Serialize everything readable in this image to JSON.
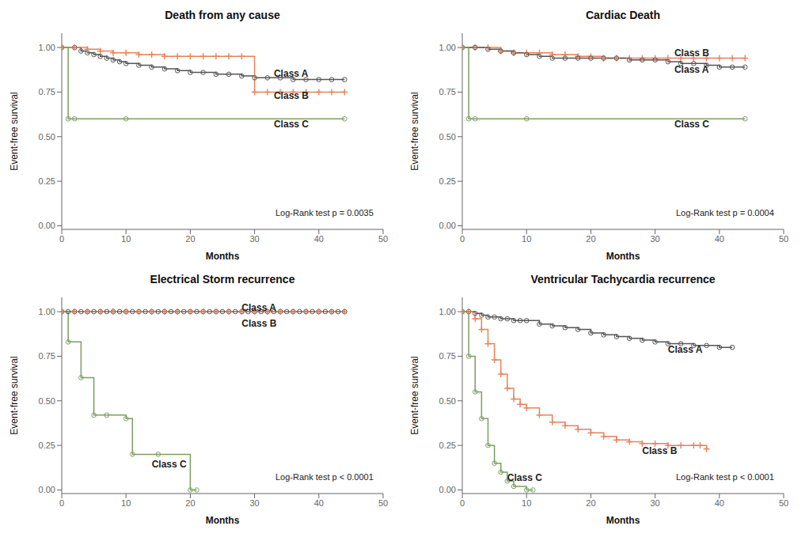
{
  "chart_data": [
    {
      "type": "step",
      "title": "Death from any cause",
      "x_label": "Months",
      "y_label": "Event-free survival",
      "xlim": [
        0,
        50
      ],
      "ylim": [
        -0.02,
        1.08
      ],
      "xticks": [
        0,
        10,
        20,
        30,
        40,
        50
      ],
      "yticks": [
        {
          "value": 0.0,
          "label": "0.00"
        },
        0.25,
        {
          "value": 0.5,
          "label": "0.50"
        },
        0.75,
        {
          "value": 1.0,
          "label": "1.00"
        }
      ],
      "series": [
        {
          "name": "Class A",
          "color": "#555555",
          "marker": "circle",
          "x": [
            0,
            2,
            3,
            4,
            5,
            6,
            7,
            8,
            9,
            10,
            12,
            14,
            16,
            18,
            20,
            22,
            24,
            26,
            28,
            30,
            32,
            34,
            36,
            38,
            40,
            42,
            44
          ],
          "values": [
            1.0,
            1.0,
            0.98,
            0.97,
            0.96,
            0.95,
            0.94,
            0.93,
            0.92,
            0.91,
            0.9,
            0.89,
            0.88,
            0.87,
            0.86,
            0.86,
            0.85,
            0.85,
            0.84,
            0.83,
            0.83,
            0.83,
            0.82,
            0.82,
            0.82,
            0.82,
            0.82
          ]
        },
        {
          "name": "Class B",
          "color": "#e8825a",
          "marker": "plus",
          "x": [
            0,
            2,
            4,
            6,
            8,
            10,
            12,
            14,
            16,
            18,
            20,
            22,
            24,
            26,
            28,
            30,
            32,
            34,
            36,
            38,
            40,
            42,
            44
          ],
          "values": [
            1.0,
            1.0,
            0.99,
            0.98,
            0.97,
            0.97,
            0.96,
            0.96,
            0.95,
            0.95,
            0.95,
            0.95,
            0.95,
            0.95,
            0.95,
            0.75,
            0.75,
            0.75,
            0.75,
            0.75,
            0.75,
            0.75,
            0.75
          ]
        },
        {
          "name": "Class C",
          "color": "#7a9f60",
          "marker": "circle",
          "x": [
            0,
            1,
            2,
            10,
            44
          ],
          "values": [
            1.0,
            0.6,
            0.6,
            0.6,
            0.6
          ]
        }
      ],
      "annotations": [
        {
          "text": "Class A",
          "x": 33,
          "y": 0.855
        },
        {
          "text": "Class B",
          "x": 33,
          "y": 0.73
        },
        {
          "text": "Class C",
          "x": 33,
          "y": 0.57
        },
        {
          "text": "Log-Rank test p = 0.0035"
        }
      ]
    },
    {
      "type": "step",
      "title": "Cardiac Death",
      "x_label": "Months",
      "y_label": "Event-free survival",
      "xlim": [
        0,
        50
      ],
      "ylim": [
        -0.02,
        1.08
      ],
      "xticks": [
        0,
        10,
        20,
        30,
        40,
        50
      ],
      "yticks": [
        {
          "value": 0.0,
          "label": "0.00"
        },
        0.25,
        {
          "value": 0.5,
          "label": "0.50"
        },
        0.75,
        {
          "value": 1.0,
          "label": "1.00"
        }
      ],
      "series": [
        {
          "name": "Class B",
          "color": "#e8825a",
          "marker": "plus",
          "x": [
            0,
            2,
            4,
            6,
            8,
            10,
            12,
            14,
            16,
            18,
            20,
            22,
            24,
            26,
            28,
            30,
            32,
            34,
            36,
            38,
            40,
            42,
            44
          ],
          "values": [
            1.0,
            1.0,
            1.0,
            0.98,
            0.97,
            0.97,
            0.97,
            0.96,
            0.96,
            0.95,
            0.95,
            0.94,
            0.94,
            0.94,
            0.94,
            0.94,
            0.94,
            0.94,
            0.94,
            0.94,
            0.94,
            0.94,
            0.94
          ]
        },
        {
          "name": "Class A",
          "color": "#555555",
          "marker": "circle",
          "x": [
            0,
            2,
            4,
            6,
            8,
            10,
            12,
            14,
            16,
            18,
            20,
            22,
            24,
            26,
            28,
            30,
            32,
            34,
            36,
            38,
            40,
            42,
            44
          ],
          "values": [
            1.0,
            1.0,
            0.99,
            0.98,
            0.97,
            0.96,
            0.95,
            0.94,
            0.94,
            0.94,
            0.94,
            0.94,
            0.94,
            0.93,
            0.93,
            0.93,
            0.92,
            0.91,
            0.91,
            0.9,
            0.89,
            0.89,
            0.89
          ]
        },
        {
          "name": "Class C",
          "color": "#7a9f60",
          "marker": "circle",
          "x": [
            0,
            1,
            2,
            10,
            44
          ],
          "values": [
            1.0,
            0.6,
            0.6,
            0.6,
            0.6
          ]
        }
      ],
      "annotations": [
        {
          "text": "Class B",
          "x": 33,
          "y": 0.97
        },
        {
          "text": "Class A",
          "x": 33,
          "y": 0.875
        },
        {
          "text": "Class C",
          "x": 33,
          "y": 0.57
        },
        {
          "text": "Log-Rank test p = 0.0004"
        }
      ]
    },
    {
      "type": "step",
      "title": "Electrical Storm recurrence",
      "x_label": "Months",
      "y_label": "Event-free survival",
      "xlim": [
        0,
        50
      ],
      "ylim": [
        -0.02,
        1.08
      ],
      "xticks": [
        0,
        10,
        20,
        30,
        40,
        50
      ],
      "yticks": [
        {
          "value": 0.0,
          "label": "0.00"
        },
        0.25,
        {
          "value": 0.5,
          "label": "0.50"
        },
        0.75,
        {
          "value": 1.0,
          "label": "1.00"
        }
      ],
      "series": [
        {
          "name": "Class A",
          "color": "#555555",
          "marker": "circle",
          "x": [
            0,
            1,
            2,
            3,
            4,
            5,
            6,
            7,
            8,
            9,
            10,
            11,
            12,
            13,
            14,
            15,
            16,
            17,
            18,
            19,
            20,
            21,
            22,
            23,
            24,
            25,
            26,
            27,
            28,
            29,
            30,
            31,
            32,
            33,
            34,
            35,
            36,
            37,
            38,
            39,
            40,
            41,
            42,
            43,
            44
          ],
          "values": [
            1.0,
            1.0,
            1.0,
            1.0,
            1.0,
            1.0,
            1.0,
            1.0,
            1.0,
            1.0,
            1.0,
            1.0,
            1.0,
            1.0,
            1.0,
            1.0,
            1.0,
            1.0,
            1.0,
            1.0,
            1.0,
            1.0,
            1.0,
            1.0,
            1.0,
            1.0,
            1.0,
            1.0,
            1.0,
            1.0,
            1.0,
            1.0,
            1.0,
            1.0,
            1.0,
            1.0,
            1.0,
            1.0,
            1.0,
            1.0,
            1.0,
            1.0,
            1.0,
            1.0,
            1.0
          ]
        },
        {
          "name": "Class B",
          "color": "#e8825a",
          "marker": "plus",
          "x": [
            0,
            2,
            4,
            6,
            8,
            10,
            12,
            14,
            16,
            18,
            20,
            22,
            24,
            26,
            28,
            30,
            32,
            34,
            36,
            38,
            40,
            42,
            44
          ],
          "values": [
            1.0,
            1.0,
            1.0,
            1.0,
            1.0,
            1.0,
            1.0,
            1.0,
            1.0,
            1.0,
            1.0,
            1.0,
            1.0,
            1.0,
            1.0,
            1.0,
            1.0,
            1.0,
            1.0,
            1.0,
            1.0,
            1.0,
            1.0
          ]
        },
        {
          "name": "Class C",
          "color": "#7a9f60",
          "marker": "circle",
          "x": [
            0,
            1,
            3,
            5,
            7,
            10,
            11,
            15,
            20,
            21
          ],
          "values": [
            1.0,
            0.83,
            0.63,
            0.42,
            0.42,
            0.4,
            0.2,
            0.2,
            0.0,
            0.0
          ]
        }
      ],
      "annotations": [
        {
          "text": "Class A",
          "x": 28,
          "y": 1.025
        },
        {
          "text": "Class B",
          "x": 28,
          "y": 0.935
        },
        {
          "text": "Class C",
          "x": 14,
          "y": 0.145
        },
        {
          "text": "Log-Rank test p < 0.0001"
        }
      ]
    },
    {
      "type": "step",
      "title": "Ventricular Tachycardia recurrence",
      "x_label": "Months",
      "y_label": "Event-free survival",
      "xlim": [
        0,
        50
      ],
      "ylim": [
        -0.02,
        1.08
      ],
      "xticks": [
        0,
        10,
        20,
        30,
        40,
        50
      ],
      "yticks": [
        {
          "value": 0.0,
          "label": "0.00"
        },
        0.25,
        {
          "value": 0.5,
          "label": "0.50"
        },
        0.75,
        {
          "value": 1.0,
          "label": "1.00"
        }
      ],
      "series": [
        {
          "name": "Class A",
          "color": "#555555",
          "marker": "circle",
          "x": [
            0,
            1,
            2,
            3,
            4,
            5,
            6,
            7,
            8,
            9,
            10,
            12,
            14,
            16,
            18,
            20,
            22,
            24,
            26,
            28,
            30,
            32,
            34,
            36,
            38,
            40,
            42
          ],
          "values": [
            1.0,
            1.0,
            0.99,
            0.98,
            0.97,
            0.97,
            0.96,
            0.96,
            0.95,
            0.95,
            0.95,
            0.93,
            0.92,
            0.91,
            0.9,
            0.88,
            0.87,
            0.86,
            0.85,
            0.84,
            0.83,
            0.82,
            0.82,
            0.81,
            0.81,
            0.8,
            0.8
          ]
        },
        {
          "name": "Class B",
          "color": "#e8825a",
          "marker": "plus",
          "x": [
            0,
            1,
            2,
            3,
            4,
            5,
            6,
            7,
            8,
            9,
            10,
            12,
            14,
            16,
            18,
            20,
            22,
            24,
            26,
            28,
            30,
            32,
            34,
            36,
            37,
            38
          ],
          "values": [
            1.0,
            1.0,
            0.96,
            0.9,
            0.82,
            0.73,
            0.65,
            0.57,
            0.51,
            0.48,
            0.46,
            0.42,
            0.38,
            0.36,
            0.34,
            0.32,
            0.3,
            0.28,
            0.27,
            0.26,
            0.26,
            0.25,
            0.25,
            0.25,
            0.25,
            0.23
          ]
        },
        {
          "name": "Class C",
          "color": "#7a9f60",
          "marker": "circle",
          "x": [
            0,
            1,
            2,
            3,
            4,
            5,
            6,
            7,
            8,
            10,
            11
          ],
          "values": [
            1.0,
            0.75,
            0.55,
            0.4,
            0.25,
            0.15,
            0.1,
            0.05,
            0.02,
            0.0,
            0.0
          ]
        }
      ],
      "annotations": [
        {
          "text": "Class A",
          "x": 32,
          "y": 0.79
        },
        {
          "text": "Class B",
          "x": 28,
          "y": 0.22
        },
        {
          "text": "Class C",
          "x": 7,
          "y": 0.07
        },
        {
          "text": "Log-Rank test p < 0.0001"
        }
      ]
    }
  ]
}
